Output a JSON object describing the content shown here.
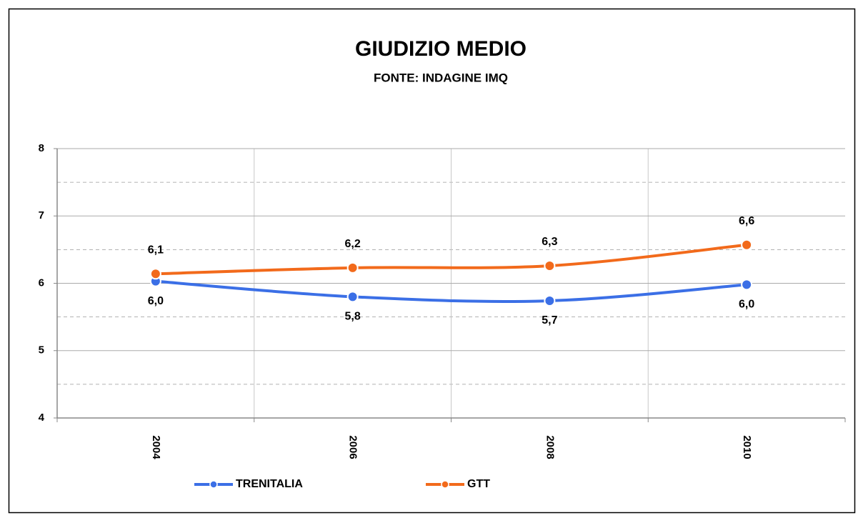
{
  "chart_data": {
    "type": "line",
    "title": "GIUDIZIO MEDIO",
    "subtitle": "FONTE: INDAGINE IMQ",
    "categories": [
      "2004",
      "2006",
      "2008",
      "2010"
    ],
    "series": [
      {
        "name": "TRENITALIA",
        "color": "#3b6fe6",
        "values": [
          6.03,
          5.8,
          5.74,
          5.98
        ],
        "value_labels": [
          "6,0",
          "5,8",
          "5,7",
          "6,0"
        ],
        "label_position": "below"
      },
      {
        "name": "GTT",
        "color": "#f26a1b",
        "values": [
          6.14,
          6.23,
          6.26,
          6.57
        ],
        "value_labels": [
          "6,1",
          "6,2",
          "6,3",
          "6,6"
        ],
        "label_position": "above"
      }
    ],
    "ylim": [
      4,
      8
    ],
    "yticks": [
      4,
      5,
      6,
      7,
      8
    ],
    "minor_yticks": [
      4.5,
      5.5,
      6.5,
      7.5
    ],
    "grid": true,
    "smooth": true,
    "legend": "bottom"
  }
}
